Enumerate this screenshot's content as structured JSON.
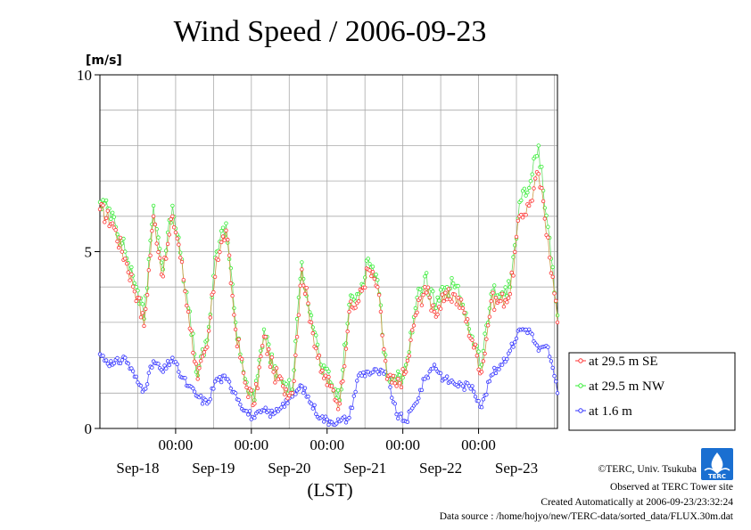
{
  "chart_data": {
    "type": "line",
    "title": "Wind Speed / 2006-09-23",
    "ylabel": "[m/s]",
    "xlabel": "(LST)",
    "ylim": [
      0,
      10
    ],
    "y_ticks": [
      "0",
      "5",
      "10"
    ],
    "x_range_hours": [
      0,
      145
    ],
    "time_ticks": {
      "labels": [
        "00:00",
        "00:00",
        "00:00",
        "00:00",
        "00:00"
      ],
      "hours": [
        24,
        48,
        72,
        96,
        120
      ]
    },
    "date_labels": [
      {
        "label": "Sep-18",
        "hour": 12
      },
      {
        "label": "Sep-19",
        "hour": 36
      },
      {
        "label": "Sep-20",
        "hour": 60
      },
      {
        "label": "Sep-21",
        "hour": 84
      },
      {
        "label": "Sep-22",
        "hour": 108
      },
      {
        "label": "Sep-23",
        "hour": 132
      }
    ],
    "grid": true,
    "legend_position": "right",
    "series": [
      {
        "name": "at 29.5 m SE",
        "color": "#ff3333",
        "x": [
          0,
          4,
          8,
          12,
          14,
          17,
          20,
          23,
          25,
          28,
          31,
          34,
          37,
          40,
          43,
          46,
          49,
          52,
          55,
          58,
          61,
          64,
          67,
          70,
          73,
          76,
          79,
          82,
          85,
          88,
          91,
          94,
          97,
          100,
          103,
          106,
          109,
          112,
          115,
          118,
          121,
          124,
          127,
          130,
          133,
          136,
          139,
          142,
          145
        ],
        "y": [
          6.2,
          5.8,
          4.8,
          3.7,
          2.9,
          6.0,
          4.3,
          6.0,
          5.2,
          3.3,
          1.4,
          2.3,
          4.8,
          5.6,
          2.8,
          1.3,
          0.7,
          2.6,
          1.6,
          1.2,
          1.0,
          4.5,
          3.0,
          1.6,
          1.2,
          0.7,
          3.3,
          3.6,
          4.5,
          4.0,
          1.4,
          1.2,
          1.6,
          3.2,
          4.0,
          3.3,
          3.6,
          3.8,
          3.4,
          2.5,
          1.6,
          3.6,
          3.6,
          3.8,
          6.0,
          6.3,
          7.2,
          5.4,
          3.0
        ]
      },
      {
        "name": "at 29.5 m NW",
        "color": "#33ee33",
        "x": [
          0,
          4,
          8,
          12,
          14,
          17,
          20,
          23,
          25,
          28,
          31,
          34,
          37,
          40,
          43,
          46,
          49,
          52,
          55,
          58,
          61,
          64,
          67,
          70,
          73,
          76,
          79,
          82,
          85,
          88,
          91,
          94,
          97,
          100,
          103,
          106,
          109,
          112,
          115,
          118,
          121,
          124,
          127,
          130,
          133,
          136,
          139,
          142,
          145
        ],
        "y": [
          6.4,
          6.1,
          5.0,
          3.9,
          3.1,
          6.3,
          4.5,
          6.3,
          5.4,
          3.4,
          1.5,
          2.5,
          5.0,
          5.8,
          3.0,
          1.4,
          0.8,
          2.8,
          1.7,
          1.3,
          1.1,
          4.7,
          3.2,
          1.8,
          1.3,
          0.8,
          3.5,
          3.8,
          4.8,
          4.2,
          1.5,
          1.3,
          1.8,
          3.4,
          4.3,
          3.5,
          3.8,
          4.1,
          3.5,
          2.6,
          1.8,
          3.8,
          3.8,
          4.0,
          6.4,
          6.8,
          8.0,
          5.7,
          3.2
        ]
      },
      {
        "name": "at 1.6 m",
        "color": "#3333ff",
        "x": [
          0,
          4,
          8,
          12,
          14,
          17,
          20,
          23,
          25,
          28,
          31,
          34,
          37,
          40,
          43,
          46,
          49,
          52,
          55,
          58,
          61,
          64,
          67,
          70,
          73,
          76,
          79,
          82,
          85,
          88,
          91,
          94,
          97,
          100,
          103,
          106,
          109,
          112,
          115,
          118,
          121,
          124,
          127,
          130,
          133,
          136,
          139,
          142,
          145
        ],
        "y": [
          2.1,
          1.8,
          2.0,
          1.3,
          1.1,
          1.9,
          1.6,
          2.0,
          1.6,
          1.2,
          0.9,
          0.7,
          1.4,
          1.4,
          1.0,
          0.5,
          0.3,
          0.5,
          0.4,
          0.7,
          0.9,
          1.2,
          0.7,
          0.3,
          0.2,
          0.2,
          0.3,
          1.5,
          1.6,
          1.6,
          1.5,
          0.4,
          0.2,
          0.7,
          1.4,
          1.8,
          1.4,
          1.3,
          1.2,
          1.2,
          0.6,
          1.5,
          1.8,
          2.2,
          2.8,
          2.8,
          2.2,
          2.3,
          1.0
        ]
      }
    ]
  },
  "credits": {
    "copyright": "©TERC, Univ. Tsukuba",
    "observed": "Observed at TERC Tower site",
    "created": "Created Automatically at 2006-09-23/23:32:24",
    "source": "Data source : /home/hojyo/new/TERC-data/sorted_data/FLUX.30m.dat",
    "logo_text": "TERC"
  }
}
